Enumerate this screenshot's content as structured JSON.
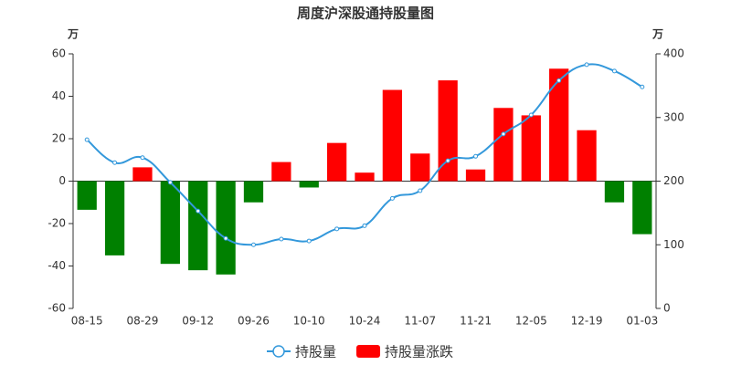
{
  "chart_data": {
    "type": "bar-line",
    "title": "周度沪深股通持股量图",
    "y_unit": "万",
    "y2_unit": "万",
    "categories": [
      "08-15",
      null,
      "08-29",
      null,
      "09-12",
      null,
      "09-26",
      null,
      "10-10",
      null,
      "10-24",
      null,
      "11-07",
      null,
      "11-21",
      null,
      "12-05",
      null,
      "12-19",
      null,
      "01-03"
    ],
    "series": [
      {
        "name": "持股量",
        "type": "line",
        "axis": "y2",
        "color": "#3398db",
        "values": [
          265,
          229,
          237,
          198,
          153,
          110,
          100,
          109,
          106,
          125,
          130,
          173,
          185,
          232,
          239,
          274,
          304,
          358,
          383,
          373,
          348
        ]
      },
      {
        "name": "持股量涨跌",
        "type": "bar",
        "color": "#ff0000",
        "up_color": "#ff0000",
        "down_color": "#008000",
        "values": [
          -13.5,
          -35,
          6.5,
          -39,
          -42,
          -44,
          -10,
          9,
          -3,
          18,
          4,
          43,
          13,
          47.5,
          5.5,
          34.5,
          31,
          53,
          24,
          -10,
          -25
        ]
      }
    ],
    "ylim": [
      -60,
      60
    ],
    "yticks": [
      -60,
      -40,
      -20,
      0,
      20,
      40,
      60
    ],
    "y2lim": [
      0,
      400
    ],
    "y2ticks": [
      0,
      100,
      200,
      300,
      400
    ]
  }
}
